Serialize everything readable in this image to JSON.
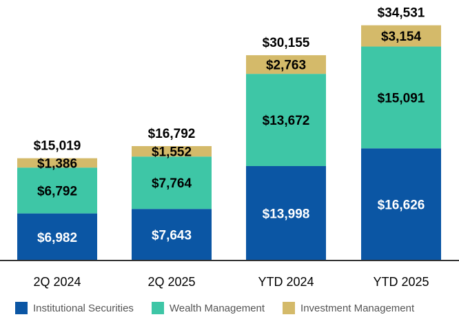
{
  "chart_data": {
    "type": "bar",
    "stacked": true,
    "title": "",
    "xlabel": "",
    "ylabel": "",
    "ylim": [
      0,
      36000
    ],
    "categories": [
      "2Q 2024",
      "2Q 2025",
      "YTD 2024",
      "YTD 2025"
    ],
    "series": [
      {
        "name": "Institutional Securities",
        "color": "#0b56a4",
        "label_color": "#ffffff",
        "values": [
          6982,
          7643,
          13998,
          16626
        ],
        "labels": [
          "$6,982",
          "$7,643",
          "$13,998",
          "$16,626"
        ]
      },
      {
        "name": "Wealth Management",
        "color": "#3ec6a6",
        "label_color": "#000000",
        "values": [
          6792,
          7764,
          13672,
          15091
        ],
        "labels": [
          "$6,792",
          "$7,764",
          "$13,672",
          "$15,091"
        ]
      },
      {
        "name": "Investment Management",
        "color": "#d4ba6a",
        "label_color": "#000000",
        "values": [
          1386,
          1552,
          2763,
          3154
        ],
        "labels": [
          "$1,386",
          "$1,552",
          "$2,763",
          "$3,154"
        ]
      }
    ],
    "totals": [
      15019,
      16792,
      30155,
      34531
    ],
    "total_labels": [
      "$15,019",
      "$16,792",
      "$30,155",
      "$34,531"
    ],
    "legend_position": "bottom",
    "grid": false
  }
}
